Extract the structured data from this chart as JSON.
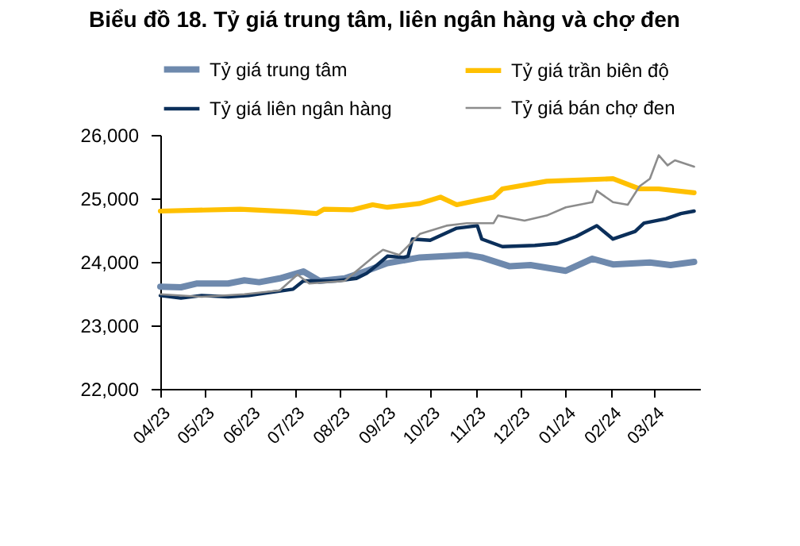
{
  "chart_data": {
    "type": "line",
    "title": "Biểu đồ 18. Tỷ giá trung tâm, liên ngân hàng và chợ đen",
    "xlim": [
      "2023-04-01",
      "2024-04-01"
    ],
    "xticks": [
      {
        "value": "2023-04-01",
        "label": "04/23"
      },
      {
        "value": "2023-05-01",
        "label": "05/23"
      },
      {
        "value": "2023-06-01",
        "label": "06/23"
      },
      {
        "value": "2023-07-01",
        "label": "07/23"
      },
      {
        "value": "2023-08-01",
        "label": "08/23"
      },
      {
        "value": "2023-09-01",
        "label": "09/23"
      },
      {
        "value": "2023-10-01",
        "label": "10/23"
      },
      {
        "value": "2023-11-01",
        "label": "11/23"
      },
      {
        "value": "2023-12-01",
        "label": "12/23"
      },
      {
        "value": "2024-01-01",
        "label": "01/24"
      },
      {
        "value": "2024-02-01",
        "label": "02/24"
      },
      {
        "value": "2024-03-01",
        "label": "03/24"
      }
    ],
    "ylim": [
      22000,
      26000
    ],
    "yticks": [
      {
        "value": 22000,
        "label": "22,000"
      },
      {
        "value": 23000,
        "label": "23,000"
      },
      {
        "value": 24000,
        "label": "24,000"
      },
      {
        "value": 25000,
        "label": "25,000"
      },
      {
        "value": 26000,
        "label": "26,000"
      }
    ],
    "grid": false,
    "legend": "top",
    "series": [
      {
        "name": "Tỷ giá trung  tâm",
        "color": "#6e89ad",
        "x": [
          "2023-04-01",
          "2023-04-15",
          "2023-04-26",
          "2023-05-17",
          "2023-05-28",
          "2023-06-07",
          "2023-06-21",
          "2023-07-07",
          "2023-07-18",
          "2023-08-04",
          "2023-08-19",
          "2023-09-02",
          "2023-09-24",
          "2023-10-26",
          "2023-11-05",
          "2023-11-24",
          "2023-12-08",
          "2024-01-01",
          "2024-01-19",
          "2024-02-02",
          "2024-02-27",
          "2024-03-12",
          "2024-03-28"
        ],
        "values": [
          23610,
          23600,
          23660,
          23660,
          23710,
          23680,
          23740,
          23850,
          23700,
          23740,
          23860,
          23980,
          24070,
          24110,
          24070,
          23930,
          23950,
          23860,
          24050,
          23960,
          23990,
          23950,
          24000
        ]
      },
      {
        "name": "Tỷ giá trần biên độ",
        "color": "#ffc000",
        "x": [
          "2023-04-01",
          "2023-05-25",
          "2023-06-30",
          "2023-07-16",
          "2023-07-21",
          "2023-08-09",
          "2023-08-23",
          "2023-09-02",
          "2023-09-24",
          "2023-10-08",
          "2023-10-19",
          "2023-11-13",
          "2023-11-19",
          "2023-12-19",
          "2024-02-02",
          "2024-02-20",
          "2024-03-04",
          "2024-03-28"
        ],
        "values": [
          24800,
          24830,
          24790,
          24760,
          24830,
          24820,
          24900,
          24860,
          24920,
          25020,
          24900,
          25020,
          25150,
          25270,
          25310,
          25150,
          25150,
          25090
        ]
      },
      {
        "name": "Tỷ giá liên ngân hàng",
        "color": "#0b2f5a",
        "x": [
          "2023-04-01",
          "2023-04-15",
          "2023-04-29",
          "2023-05-17",
          "2023-05-31",
          "2023-06-15",
          "2023-06-30",
          "2023-07-07",
          "2023-07-29",
          "2023-08-12",
          "2023-08-19",
          "2023-08-26",
          "2023-09-02",
          "2023-09-13",
          "2023-09-16",
          "2023-09-19",
          "2023-10-01",
          "2023-10-19",
          "2023-11-02",
          "2023-11-05",
          "2023-11-19",
          "2023-12-11",
          "2023-12-26",
          "2024-01-08",
          "2024-01-22",
          "2024-02-02",
          "2024-02-17",
          "2024-02-23",
          "2024-03-09",
          "2024-03-19",
          "2024-03-28"
        ],
        "values": [
          23470,
          23430,
          23470,
          23450,
          23470,
          23520,
          23570,
          23700,
          23700,
          23740,
          23820,
          23950,
          24090,
          24070,
          24090,
          24360,
          24340,
          24530,
          24570,
          24360,
          24240,
          24260,
          24290,
          24400,
          24570,
          24360,
          24480,
          24610,
          24680,
          24760,
          24800
        ]
      },
      {
        "name": "Tỷ giá bán chợ đen",
        "color": "#8c8c8c",
        "x": [
          "2023-04-01",
          "2023-04-29",
          "2023-05-28",
          "2023-06-21",
          "2023-07-03",
          "2023-07-11",
          "2023-08-04",
          "2023-08-23",
          "2023-08-30",
          "2023-09-10",
          "2023-09-24",
          "2023-10-12",
          "2023-10-26",
          "2023-11-13",
          "2023-11-16",
          "2023-12-04",
          "2023-12-19",
          "2024-01-01",
          "2024-01-19",
          "2024-01-22",
          "2024-02-02",
          "2024-02-12",
          "2024-02-20",
          "2024-02-27",
          "2024-03-04",
          "2024-03-10",
          "2024-03-15",
          "2024-03-28"
        ],
        "values": [
          23490,
          23450,
          23490,
          23550,
          23800,
          23660,
          23700,
          24070,
          24190,
          24110,
          24440,
          24570,
          24610,
          24610,
          24730,
          24650,
          24730,
          24860,
          24940,
          25120,
          24940,
          24900,
          25190,
          25310,
          25680,
          25520,
          25600,
          25500
        ]
      }
    ]
  }
}
